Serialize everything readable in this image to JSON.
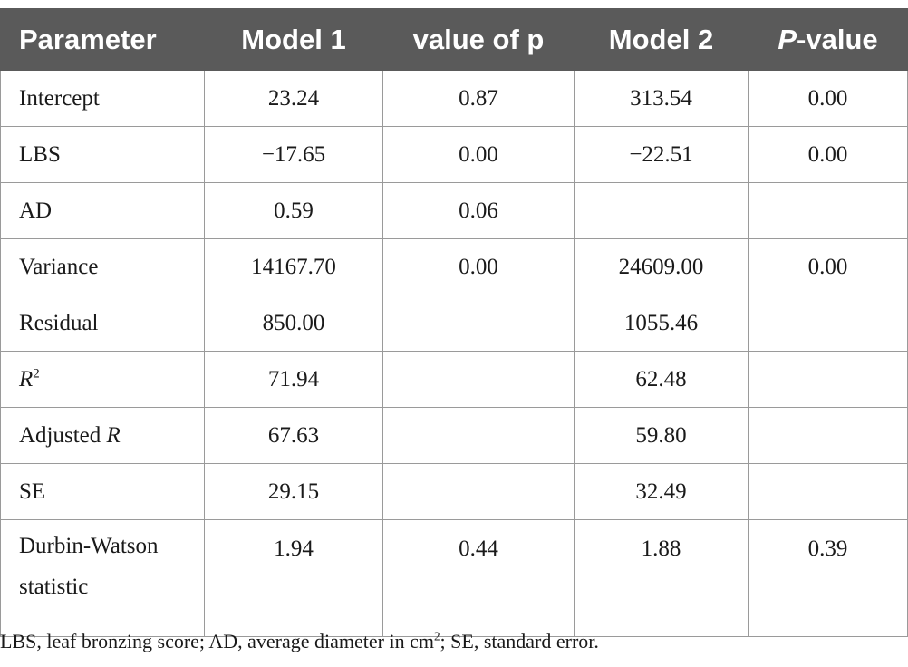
{
  "table": {
    "headers": {
      "parameter": "Parameter",
      "model1": "Model 1",
      "value_of_p": "value of p",
      "model2": "Model 2",
      "p_value_prefix": "P",
      "p_value_suffix": "-value"
    },
    "rows": [
      {
        "parameter": "Intercept",
        "model1": "23.24",
        "p1": "0.87",
        "model2": "313.54",
        "p2": "0.00"
      },
      {
        "parameter": "LBS",
        "model1": "−17.65",
        "p1": "0.00",
        "model2": "−22.51",
        "p2": "0.00"
      },
      {
        "parameter": "AD",
        "model1": "0.59",
        "p1": "0.06",
        "model2": "",
        "p2": ""
      },
      {
        "parameter": "Variance",
        "model1": "14167.70",
        "p1": "0.00",
        "model2": "24609.00",
        "p2": "0.00"
      },
      {
        "parameter": "Residual",
        "model1": "850.00",
        "p1": "",
        "model2": "1055.46",
        "p2": ""
      },
      {
        "parameter_italic": "R",
        "parameter_sup": "2",
        "model1": "71.94",
        "p1": "",
        "model2": "62.48",
        "p2": ""
      },
      {
        "parameter_prefix": "Adjusted ",
        "parameter_italic": "R",
        "model1": "67.63",
        "p1": "",
        "model2": "59.80",
        "p2": ""
      },
      {
        "parameter": "SE",
        "model1": "29.15",
        "p1": "",
        "model2": "32.49",
        "p2": ""
      },
      {
        "parameter_line1": "Durbin-Watson",
        "parameter_line2": "statistic",
        "model1": "1.94",
        "p1": "0.44",
        "model2": "1.88",
        "p2": "0.39"
      }
    ]
  },
  "footnote": {
    "part1": "LBS, leaf bronzing score; AD, average diameter in cm",
    "sup": "2",
    "part2": "; SE, standard error."
  }
}
